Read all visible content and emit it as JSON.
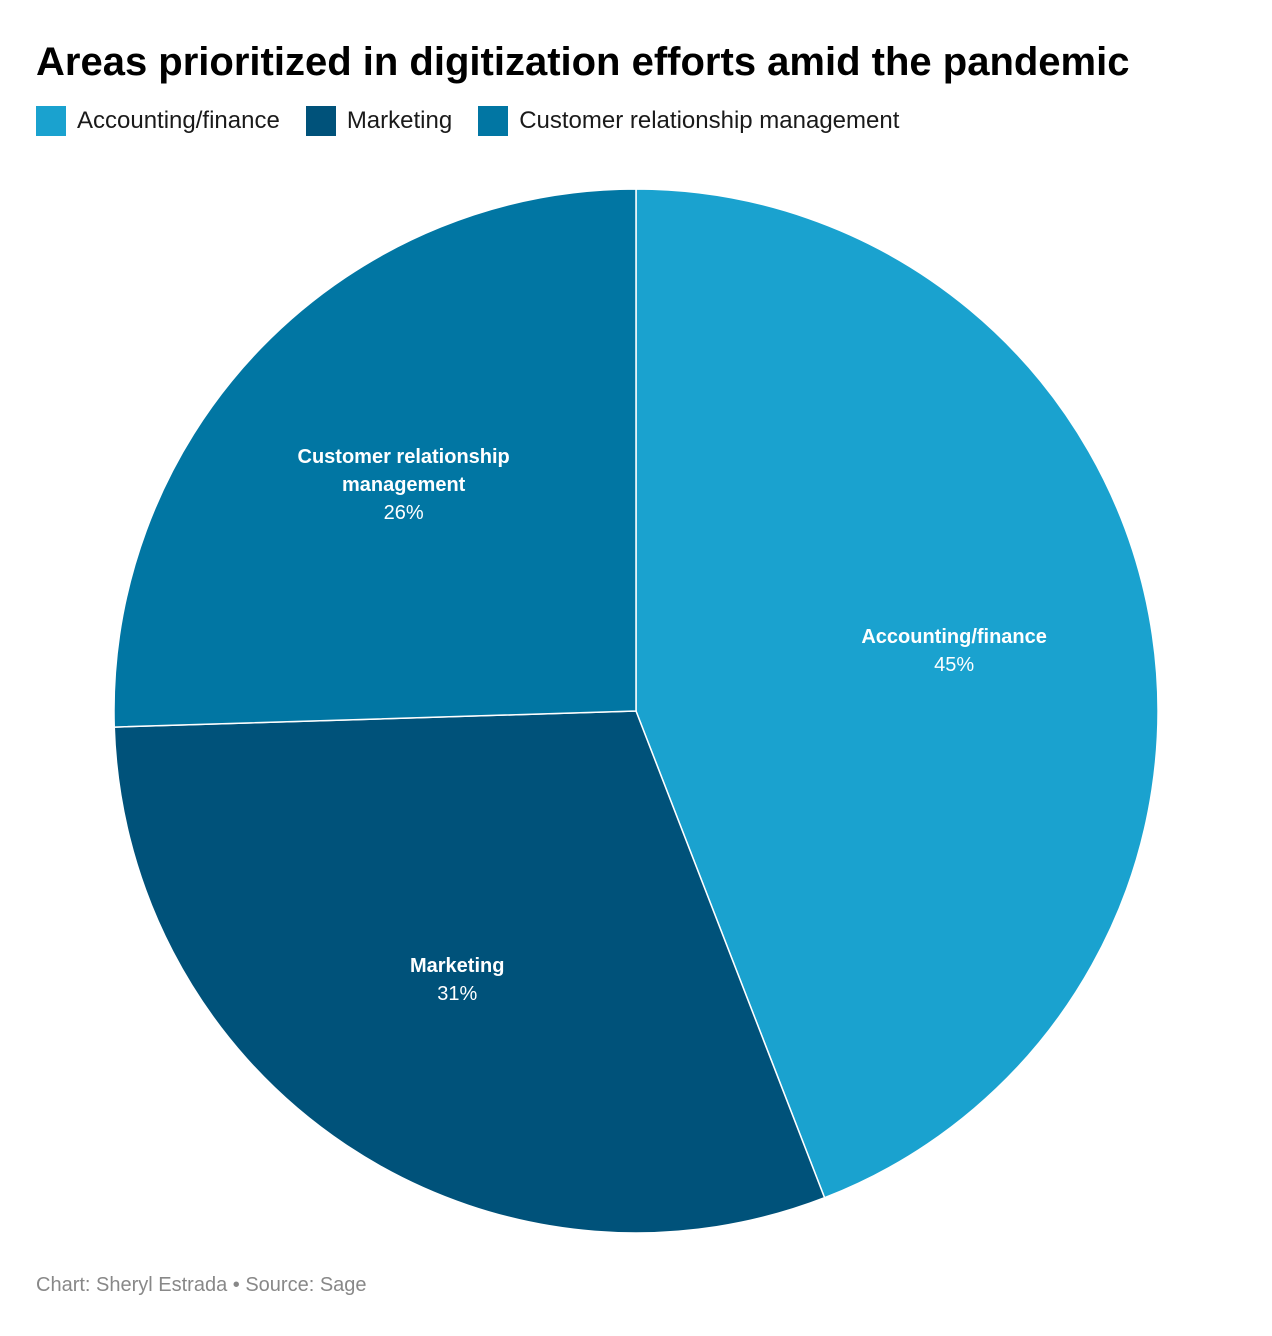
{
  "chart_data": {
    "type": "pie",
    "title": "Areas prioritized in digitization efforts amid the pandemic",
    "legend_position": "top-left",
    "categories": [
      "Accounting/finance",
      "Marketing",
      "Customer relationship management"
    ],
    "values": [
      45,
      31,
      26
    ],
    "value_labels": [
      "45%",
      "31%",
      "26%"
    ],
    "slice_labels": [
      [
        "Accounting/finance"
      ],
      [
        "Marketing"
      ],
      [
        "Customer relationship",
        "management"
      ]
    ],
    "colors": [
      "#1aa2cf",
      "#00527a",
      "#0176a3"
    ]
  },
  "footer": {
    "credit": "Chart: Sheryl Estrada",
    "separator": "•",
    "source": "Source: Sage"
  }
}
